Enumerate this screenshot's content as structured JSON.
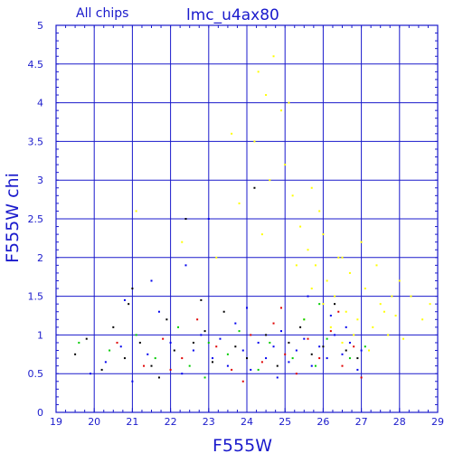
{
  "header": {
    "scope": "All chips",
    "title": "lmc_u4ax80"
  },
  "colors": {
    "frame": "#1a1acc",
    "grid": "#1a1acc",
    "text": "#1a1acc",
    "series": [
      "#000000",
      "#e00000",
      "#00cc00",
      "#0000ee",
      "#ffff00"
    ]
  },
  "chart_data": {
    "type": "scatter",
    "title": "lmc_u4ax80",
    "subtitle": "All chips",
    "xlabel": "F555W",
    "ylabel": "F555W chi",
    "xlim": [
      19,
      29
    ],
    "ylim": [
      0,
      5
    ],
    "xticks": [
      "19",
      "20",
      "21",
      "22",
      "23",
      "24",
      "25",
      "26",
      "27",
      "28",
      "29"
    ],
    "yticks": [
      "0",
      "0.5",
      "1",
      "1.5",
      "2",
      "2.5",
      "3",
      "3.5",
      "4",
      "4.5",
      "5"
    ],
    "grid": true,
    "legend": "none",
    "series": [
      {
        "color": "#000000",
        "points": [
          [
            19.5,
            0.75
          ],
          [
            19.8,
            0.95
          ],
          [
            20.2,
            0.55
          ],
          [
            20.5,
            1.1
          ],
          [
            20.8,
            0.7
          ],
          [
            21.0,
            1.6
          ],
          [
            21.2,
            0.9
          ],
          [
            21.5,
            0.6
          ],
          [
            21.9,
            1.2
          ],
          [
            22.1,
            0.8
          ],
          [
            22.4,
            2.5
          ],
          [
            22.6,
            0.9
          ],
          [
            22.9,
            1.05
          ],
          [
            23.1,
            0.65
          ],
          [
            23.4,
            1.3
          ],
          [
            23.7,
            0.85
          ],
          [
            24.0,
            0.7
          ],
          [
            24.2,
            2.9
          ],
          [
            24.5,
            1.0
          ],
          [
            24.8,
            0.6
          ],
          [
            25.1,
            0.9
          ],
          [
            25.4,
            1.1
          ],
          [
            25.7,
            0.75
          ],
          [
            26.0,
            0.85
          ],
          [
            26.3,
            1.4
          ],
          [
            26.6,
            0.8
          ],
          [
            26.9,
            0.7
          ],
          [
            21.7,
            0.45
          ],
          [
            22.8,
            1.45
          ],
          [
            20.9,
            1.4
          ]
        ]
      },
      {
        "color": "#e00000",
        "points": [
          [
            20.6,
            0.9
          ],
          [
            21.3,
            0.6
          ],
          [
            21.8,
            0.95
          ],
          [
            22.3,
            0.7
          ],
          [
            22.7,
            1.2
          ],
          [
            23.2,
            0.85
          ],
          [
            23.6,
            0.55
          ],
          [
            24.1,
            1.0
          ],
          [
            24.4,
            0.65
          ],
          [
            24.7,
            1.15
          ],
          [
            25.0,
            0.75
          ],
          [
            25.3,
            0.5
          ],
          [
            25.6,
            0.95
          ],
          [
            25.9,
            0.7
          ],
          [
            26.2,
            1.05
          ],
          [
            26.5,
            0.6
          ],
          [
            26.8,
            0.85
          ],
          [
            27.0,
            0.45
          ],
          [
            26.4,
            1.3
          ],
          [
            23.9,
            0.4
          ],
          [
            22.0,
            0.55
          ],
          [
            24.9,
            1.35
          ]
        ]
      },
      {
        "color": "#00cc00",
        "points": [
          [
            19.6,
            0.9
          ],
          [
            20.4,
            0.8
          ],
          [
            21.1,
            1.0
          ],
          [
            21.6,
            0.7
          ],
          [
            22.2,
            1.1
          ],
          [
            22.5,
            0.6
          ],
          [
            23.0,
            0.9
          ],
          [
            23.5,
            0.75
          ],
          [
            23.8,
            1.05
          ],
          [
            24.3,
            0.55
          ],
          [
            24.6,
            0.9
          ],
          [
            25.2,
            0.7
          ],
          [
            25.5,
            1.2
          ],
          [
            25.8,
            0.6
          ],
          [
            26.1,
            0.95
          ],
          [
            26.7,
            0.7
          ],
          [
            27.1,
            0.85
          ],
          [
            22.9,
            0.45
          ],
          [
            25.9,
            1.4
          ]
        ]
      },
      {
        "color": "#0000ee",
        "points": [
          [
            19.9,
            0.5
          ],
          [
            20.3,
            0.65
          ],
          [
            20.7,
            0.85
          ],
          [
            21.0,
            0.4
          ],
          [
            21.4,
            0.75
          ],
          [
            21.7,
            1.3
          ],
          [
            22.0,
            0.9
          ],
          [
            22.3,
            0.5
          ],
          [
            22.6,
            0.8
          ],
          [
            22.8,
            1.0
          ],
          [
            23.1,
            0.7
          ],
          [
            23.3,
            0.95
          ],
          [
            23.5,
            0.6
          ],
          [
            23.7,
            1.15
          ],
          [
            23.9,
            0.8
          ],
          [
            24.1,
            0.55
          ],
          [
            24.3,
            0.9
          ],
          [
            24.5,
            0.7
          ],
          [
            24.7,
            0.85
          ],
          [
            24.9,
            1.05
          ],
          [
            25.1,
            0.65
          ],
          [
            25.3,
            0.8
          ],
          [
            25.5,
            0.95
          ],
          [
            25.7,
            0.6
          ],
          [
            25.9,
            0.85
          ],
          [
            26.1,
            0.7
          ],
          [
            26.3,
            1.0
          ],
          [
            26.5,
            0.75
          ],
          [
            26.7,
            0.9
          ],
          [
            26.9,
            0.55
          ],
          [
            27.0,
            0.8
          ],
          [
            21.5,
            1.7
          ],
          [
            22.4,
            1.9
          ],
          [
            20.8,
            1.45
          ],
          [
            24.0,
            1.35
          ],
          [
            25.6,
            1.5
          ],
          [
            26.2,
            1.25
          ],
          [
            23.0,
            2.5
          ],
          [
            24.8,
            0.45
          ],
          [
            26.6,
            1.1
          ]
        ]
      },
      {
        "color": "#ffff00",
        "points": [
          [
            21.1,
            2.6
          ],
          [
            22.3,
            2.2
          ],
          [
            23.2,
            2.0
          ],
          [
            23.8,
            2.7
          ],
          [
            24.2,
            3.5
          ],
          [
            24.5,
            4.1
          ],
          [
            24.7,
            4.6
          ],
          [
            24.9,
            3.9
          ],
          [
            25.0,
            3.2
          ],
          [
            25.2,
            2.8
          ],
          [
            25.4,
            2.4
          ],
          [
            25.6,
            2.1
          ],
          [
            25.8,
            1.9
          ],
          [
            26.0,
            2.3
          ],
          [
            26.1,
            1.7
          ],
          [
            26.3,
            1.5
          ],
          [
            26.4,
            2.0
          ],
          [
            26.6,
            1.3
          ],
          [
            26.7,
            1.8
          ],
          [
            26.9,
            1.2
          ],
          [
            27.1,
            1.6
          ],
          [
            27.3,
            1.1
          ],
          [
            27.5,
            1.4
          ],
          [
            27.7,
            1.0
          ],
          [
            27.9,
            1.25
          ],
          [
            28.1,
            0.95
          ],
          [
            28.3,
            1.5
          ],
          [
            28.6,
            1.2
          ],
          [
            28.8,
            1.4
          ],
          [
            25.5,
            1.2
          ],
          [
            25.7,
            1.6
          ],
          [
            26.2,
            1.1
          ],
          [
            26.5,
            0.9
          ],
          [
            26.8,
            1.0
          ],
          [
            27.2,
            0.8
          ],
          [
            27.6,
            1.3
          ],
          [
            24.4,
            2.3
          ],
          [
            24.6,
            3.0
          ],
          [
            25.3,
            1.9
          ],
          [
            25.9,
            2.6
          ],
          [
            26.0,
            1.4
          ],
          [
            27.0,
            2.2
          ],
          [
            27.4,
            1.9
          ],
          [
            28.0,
            1.7
          ],
          [
            24.3,
            4.4
          ],
          [
            25.1,
            4.0
          ],
          [
            23.6,
            3.6
          ],
          [
            25.7,
            2.9
          ],
          [
            26.5,
            2.0
          ],
          [
            27.8,
            1.5
          ]
        ]
      }
    ]
  }
}
